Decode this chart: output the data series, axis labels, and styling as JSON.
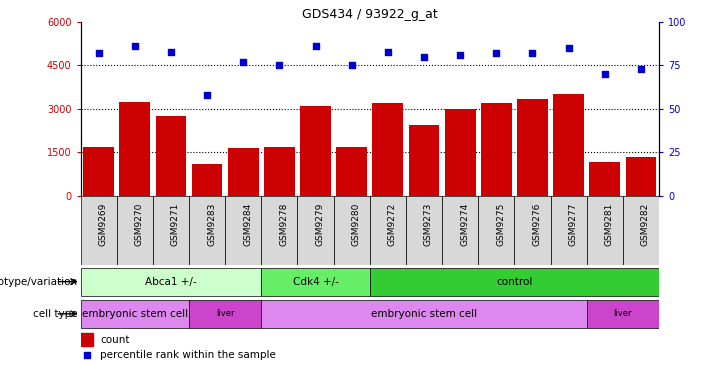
{
  "title": "GDS434 / 93922_g_at",
  "samples": [
    "GSM9269",
    "GSM9270",
    "GSM9271",
    "GSM9283",
    "GSM9284",
    "GSM9278",
    "GSM9279",
    "GSM9280",
    "GSM9272",
    "GSM9273",
    "GSM9274",
    "GSM9275",
    "GSM9276",
    "GSM9277",
    "GSM9281",
    "GSM9282"
  ],
  "counts": [
    1700,
    3250,
    2750,
    1100,
    1650,
    1700,
    3100,
    1700,
    3200,
    2450,
    3000,
    3200,
    3350,
    3500,
    1150,
    1350
  ],
  "percentiles": [
    82,
    86,
    83,
    58,
    77,
    75,
    86,
    75,
    83,
    80,
    81,
    82,
    82,
    85,
    70,
    73
  ],
  "bar_color": "#cc0000",
  "dot_color": "#0000cc",
  "ylim_left": [
    0,
    6000
  ],
  "ylim_right": [
    0,
    100
  ],
  "yticks_left": [
    0,
    1500,
    3000,
    4500,
    6000
  ],
  "yticks_right": [
    0,
    25,
    50,
    75,
    100
  ],
  "hlines": [
    1500,
    3000,
    4500
  ],
  "genotype_groups": [
    {
      "label": "Abca1 +/-",
      "start": 0,
      "end": 4,
      "color": "#ccffcc"
    },
    {
      "label": "Cdk4 +/-",
      "start": 5,
      "end": 7,
      "color": "#66ee66"
    },
    {
      "label": "control",
      "start": 8,
      "end": 15,
      "color": "#33cc33"
    }
  ],
  "celltype_groups": [
    {
      "label": "embryonic stem cell",
      "start": 0,
      "end": 2,
      "color": "#dd88ee"
    },
    {
      "label": "liver",
      "start": 3,
      "end": 4,
      "color": "#cc44cc"
    },
    {
      "label": "embryonic stem cell",
      "start": 5,
      "end": 13,
      "color": "#dd88ee"
    },
    {
      "label": "liver",
      "start": 14,
      "end": 15,
      "color": "#cc44cc"
    }
  ],
  "genotype_label": "genotype/variation",
  "celltype_label": "cell type",
  "legend_count_label": "count",
  "legend_pct_label": "percentile rank within the sample"
}
